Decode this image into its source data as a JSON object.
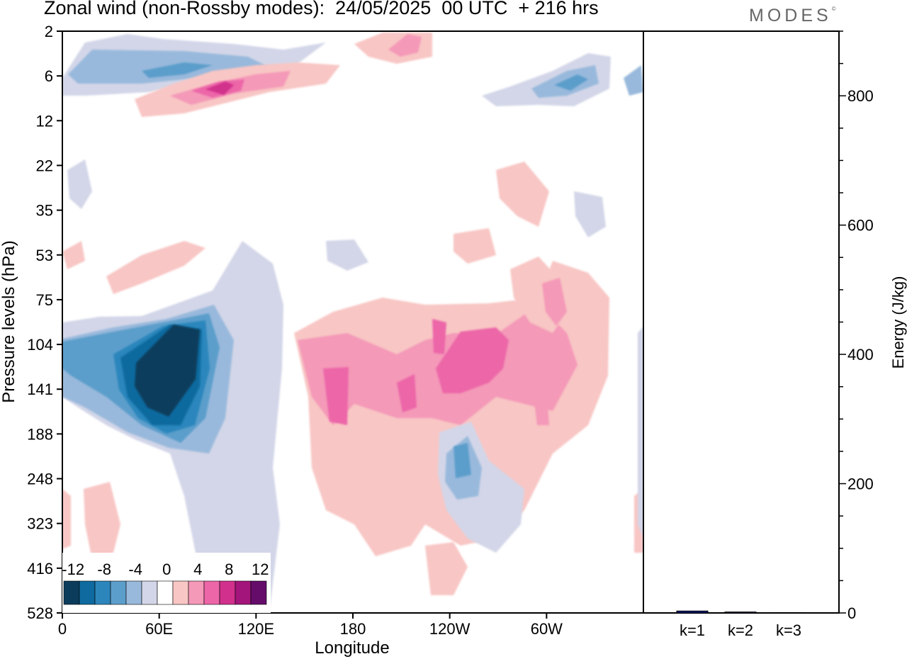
{
  "title": "Zonal wind (non-Rossby modes):  24/05/2025  00 UTC  + 216 hrs",
  "brand": {
    "name": "MODES",
    "mark": "©"
  },
  "colors": {
    "neg12": "#0c3c5c",
    "neg10": "#0e6a9f",
    "neg8": "#2c86bc",
    "neg6": "#5c9ecb",
    "neg4": "#99b9dc",
    "neg2": "#d3d6e8",
    "zero": "#ffffff",
    "pos2": "#f8c6c4",
    "pos4": "#f499b8",
    "pos6": "#ec66a8",
    "pos8": "#d1308c",
    "pos10": "#a4157b",
    "pos12": "#650c6a",
    "energy_bar": "#0b1a78"
  },
  "chart_data": [
    {
      "type": "heatmap",
      "xlabel": "Longitude",
      "ylabel": "Pressure levels (hPa)",
      "x_ticks": [
        "0",
        "60E",
        "120E",
        "180",
        "120W",
        "60W"
      ],
      "x_tick_degrees": [
        0,
        60,
        120,
        180,
        240,
        300
      ],
      "xlim": [
        0,
        360
      ],
      "y_ticks": [
        "2",
        "6",
        "12",
        "22",
        "35",
        "53",
        "75",
        "104",
        "141",
        "188",
        "248",
        "323",
        "416",
        "528"
      ],
      "colorbar": {
        "tick_labels": [
          "-12",
          "-8",
          "-4",
          "0",
          "4",
          "8",
          "12"
        ],
        "levels": [
          -12,
          -10,
          -8,
          -6,
          -4,
          -2,
          0,
          2,
          4,
          6,
          8,
          10,
          12
        ],
        "placement": "bottom-left inset"
      },
      "features": [
        {
          "lon": 65,
          "level": "141",
          "value": -12,
          "note": "strong easterly core"
        },
        {
          "lon": 55,
          "level": "104",
          "value": -6
        },
        {
          "lon": 125,
          "level": "6",
          "value": -6
        },
        {
          "lon": 310,
          "level": "6",
          "value": -6
        },
        {
          "lon": 98,
          "level": "8",
          "value": 10
        },
        {
          "lon": 198,
          "level": "2",
          "value": 6
        },
        {
          "lon": 238,
          "level": "104",
          "value": 8
        },
        {
          "lon": 170,
          "level": "141",
          "value": 6
        },
        {
          "lon": 212,
          "level": "141",
          "value": 6
        },
        {
          "lon": 248,
          "level": "248",
          "value": -6
        }
      ]
    },
    {
      "type": "bar",
      "categories": [
        "k=1",
        "k=2",
        "k=3"
      ],
      "values": [
        3,
        1.5,
        0.6
      ],
      "ylabel": "Energy (J/kg)",
      "y_ticks": [
        "0",
        "200",
        "400",
        "600",
        "800"
      ],
      "ylim": [
        0,
        900
      ],
      "grid": false
    }
  ]
}
